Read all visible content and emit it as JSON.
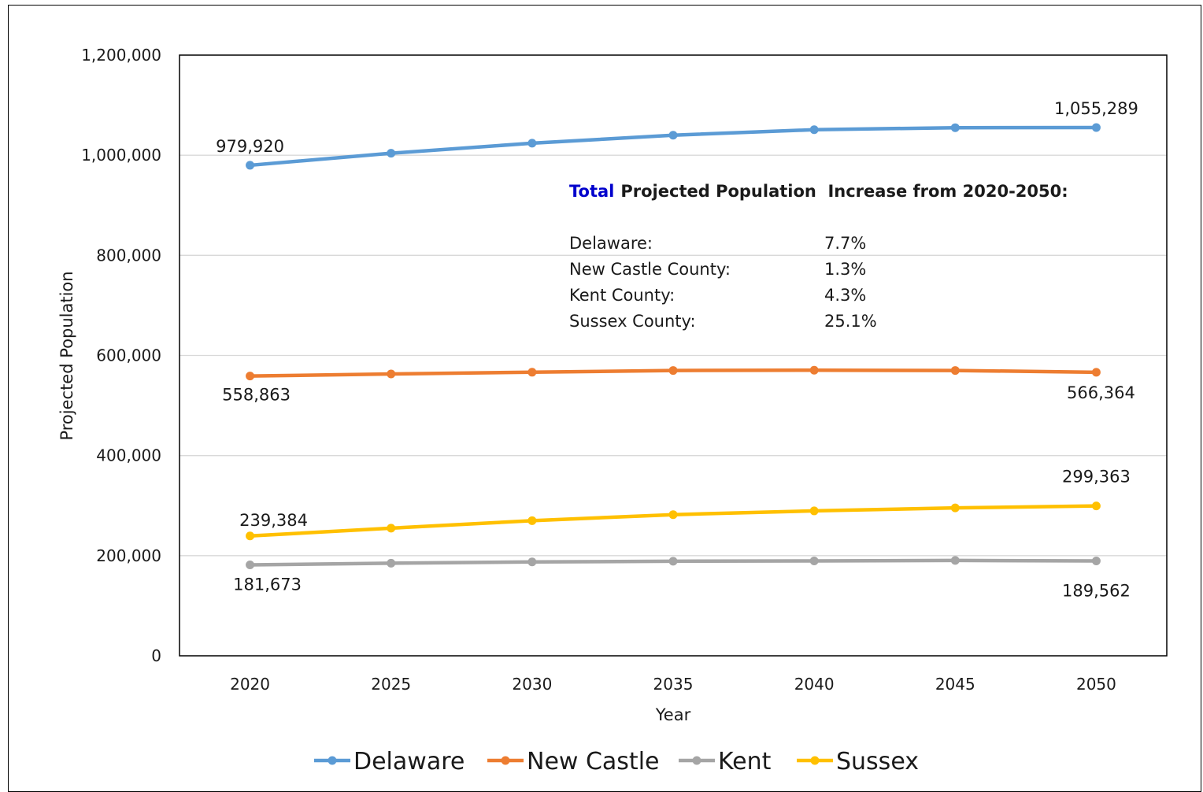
{
  "chart_data": {
    "type": "line",
    "x": [
      2020,
      2025,
      2030,
      2035,
      2040,
      2045,
      2050
    ],
    "xlabel": "Year",
    "ylabel": "Projected Population",
    "ylim": [
      0,
      1200000
    ],
    "yticks": [
      "0",
      "200,000",
      "400,000",
      "600,000",
      "800,000",
      "1,000,000",
      "1,200,000"
    ],
    "xticks": [
      "2020",
      "2025",
      "2030",
      "2035",
      "2040",
      "2045",
      "2050"
    ],
    "grid": true,
    "legend_position": "bottom",
    "series": [
      {
        "name": "Delaware",
        "color": "#5b9bd5",
        "values": [
          979920,
          1004000,
          1024000,
          1040000,
          1051000,
          1055000,
          1055289
        ],
        "labels": {
          "first": "979,920",
          "last": "1,055,289"
        }
      },
      {
        "name": "New Castle",
        "color": "#ed7d31",
        "values": [
          558863,
          563000,
          566500,
          570000,
          570500,
          570000,
          566364
        ],
        "labels": {
          "first": "558,863",
          "last": "566,364"
        }
      },
      {
        "name": "Kent",
        "color": "#a5a5a5",
        "values": [
          181673,
          185000,
          187500,
          189000,
          189500,
          190500,
          189562
        ],
        "labels": {
          "first": "181,673",
          "last": "189,562"
        }
      },
      {
        "name": "Sussex",
        "color": "#ffc000",
        "values": [
          239384,
          255000,
          270000,
          282000,
          289500,
          295500,
          299363
        ],
        "labels": {
          "first": "239,384",
          "last": "299,363"
        }
      }
    ],
    "annotation": {
      "title_colored": "Total",
      "title_colored_color": "#0000cc",
      "title_rest": "Projected Population  Increase from 2020-2050:",
      "rows": [
        {
          "label": "Delaware:",
          "value": "7.7%"
        },
        {
          "label": "New Castle County:",
          "value": "1.3%"
        },
        {
          "label": "Kent County:",
          "value": "4.3%"
        },
        {
          "label": "Sussex County:",
          "value": "25.1%"
        }
      ]
    }
  }
}
